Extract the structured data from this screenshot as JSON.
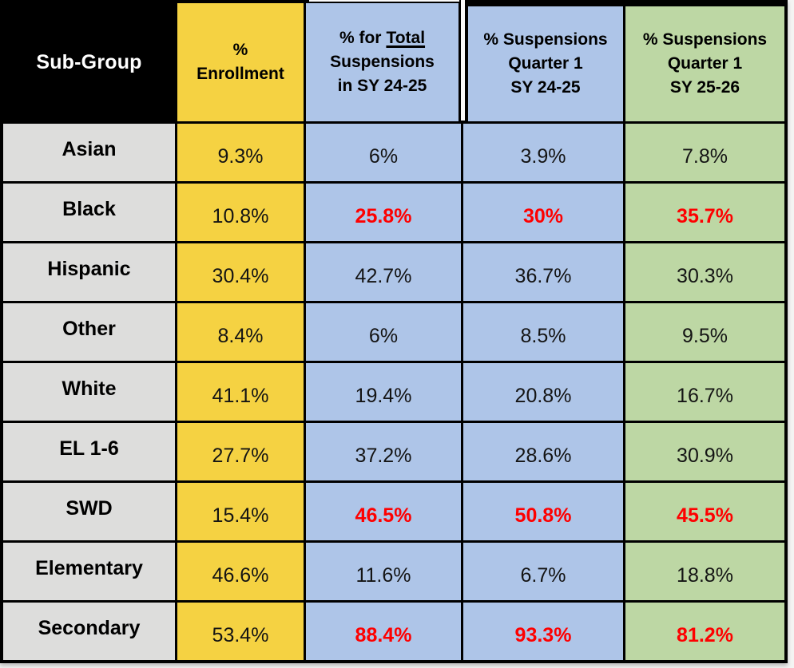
{
  "chart_data": {
    "type": "table",
    "columns": [
      "Sub-Group",
      "% Enrollment",
      "% for Total Suspensions in SY 24-25",
      "% Suspensions Quarter 1 SY 24-25",
      "% Suspensions Quarter 1 SY 25-26"
    ],
    "rows": [
      [
        "Asian",
        "9.3%",
        "6%",
        "3.9%",
        "7.8%"
      ],
      [
        "Black",
        "10.8%",
        "25.8%",
        "30%",
        "35.7%"
      ],
      [
        "Hispanic",
        "30.4%",
        "42.7%",
        "36.7%",
        "30.3%"
      ],
      [
        "Other",
        "8.4%",
        "6%",
        "8.5%",
        "9.5%"
      ],
      [
        "White",
        "41.1%",
        "19.4%",
        "20.8%",
        "16.7%"
      ],
      [
        "EL 1-6",
        "27.7%",
        "37.2%",
        "28.6%",
        "30.9%"
      ],
      [
        "SWD",
        "15.4%",
        "46.5%",
        "50.8%",
        "45.5%"
      ],
      [
        "Elementary",
        "46.6%",
        "11.6%",
        "6.7%",
        "18.8%"
      ],
      [
        "Secondary",
        "53.4%",
        "88.4%",
        "93.3%",
        "81.2%"
      ]
    ],
    "red_bold_highlight": {
      "rows": [
        "Black",
        "SWD",
        "Secondary"
      ],
      "columns": [
        "% for Total Suspensions in SY 24-25",
        "% Suspensions Quarter 1 SY 24-25",
        "% Suspensions Quarter 1 SY 25-26"
      ]
    },
    "layout_hints": {
      "grid": "on",
      "border_color": "#000000",
      "thick_top_border_columns": [
        "% Suspensions Quarter 1 SY 24-25",
        "% Suspensions Quarter 1 SY 25-26"
      ]
    }
  },
  "table": {
    "header": {
      "sub_group": "Sub-Group",
      "enrollment_lines": [
        "%",
        "Enrollment"
      ],
      "total_pre": "% for",
      "total_underlined": "Total",
      "total_line2": "Suspensions",
      "total_line3": "in SY 24-25",
      "q1_2425_lines": [
        "% Suspensions",
        "Quarter 1",
        "SY 24-25"
      ],
      "q1_2526_lines": [
        "% Suspensions",
        "Quarter 1",
        "SY 25-26"
      ]
    }
  },
  "colors": {
    "header_subgroup_bg": "#000000",
    "header_subgroup_text": "#FFFFFF",
    "enrollment_column_bg": "#F5D242",
    "blue_columns_bg": "#AEC5E8",
    "green_column_bg": "#BDD7A4",
    "subgroup_column_bg": "#DDDDDC",
    "red_highlight": "#FE0000",
    "border": "#000000"
  }
}
